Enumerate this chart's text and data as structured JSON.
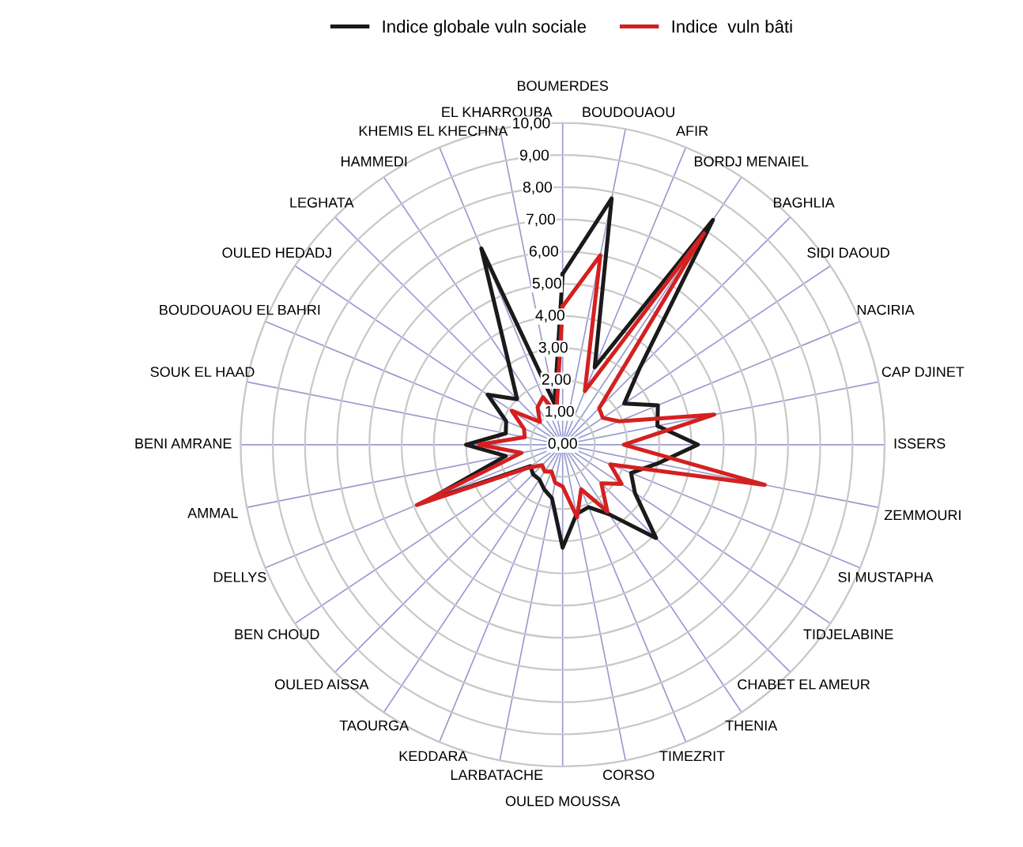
{
  "chart_data": {
    "type": "radar",
    "categories": [
      "BOUMERDES",
      "BOUDOUAOU",
      "AFIR",
      "BORDJ MENAIEL",
      "BAGHLIA",
      "SIDI DAOUD",
      "NACIRIA",
      "CAP DJINET",
      "ISSERS",
      "ZEMMOURI",
      "SI MUSTAPHA",
      "TIDJELABINE",
      "CHABET EL AMEUR",
      "THENIA",
      "TIMEZRIT",
      "CORSO",
      "OULED MOUSSA",
      "LARBATACHE",
      "KEDDARA",
      "TAOURGA",
      "OULED AISSA",
      "BEN CHOUD",
      "DELLYS",
      "AMMAL",
      "BENI AMRANE",
      "SOUK EL HAAD",
      "BOUDOUAOU EL BAHRI",
      "OULED HEDADJ",
      "LEGHATA",
      "HAMMEDI",
      "KHEMIS EL KHECHNA",
      "EL KHARROUBA"
    ],
    "series": [
      {
        "name": "Indice globale vuln sociale",
        "color": "#1a1a1a",
        "values": [
          5.3,
          7.8,
          2.6,
          8.4,
          3.4,
          2.3,
          3.2,
          3.0,
          4.2,
          3.0,
          2.3,
          2.7,
          4.1,
          2.6,
          2.1,
          2.2,
          3.2,
          1.7,
          1.5,
          1.3,
          1.3,
          1.2,
          4.6,
          1.8,
          3.0,
          1.8,
          1.9,
          2.8,
          2.0,
          3.0,
          6.6,
          1.3
        ]
      },
      {
        "name": "Indice  vuln bâti",
        "color": "#d42020",
        "values": [
          4.3,
          6.0,
          1.8,
          7.9,
          1.6,
          1.5,
          1.9,
          4.8,
          1.9,
          6.4,
          1.6,
          2.2,
          1.7,
          2.5,
          1.5,
          2.3,
          1.3,
          1.2,
          0.9,
          1.0,
          0.9,
          1.3,
          4.9,
          1.3,
          2.6,
          1.2,
          1.3,
          1.9,
          1.0,
          1.4,
          1.6,
          1.0
        ]
      }
    ],
    "ylim": [
      0,
      10
    ],
    "yticks": [
      {
        "value": 0,
        "label": "0,00"
      },
      {
        "value": 1,
        "label": "1,00"
      },
      {
        "value": 2,
        "label": "2,00"
      },
      {
        "value": 3,
        "label": "3,00"
      },
      {
        "value": 4,
        "label": "4,00"
      },
      {
        "value": 5,
        "label": "5,00"
      },
      {
        "value": 6,
        "label": "6,00"
      },
      {
        "value": 7,
        "label": "7,00"
      },
      {
        "value": 8,
        "label": "8,00"
      },
      {
        "value": 9,
        "label": "9,00"
      },
      {
        "value": 10,
        "label": "10,00"
      }
    ],
    "grid": true,
    "legend": "top",
    "line_style": "solid",
    "marker": "none"
  }
}
